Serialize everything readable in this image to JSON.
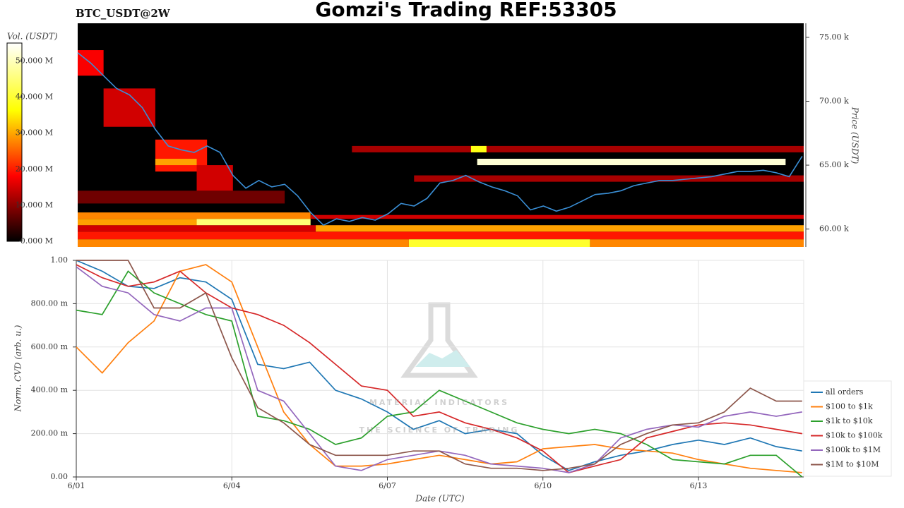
{
  "chart_data": [
    {
      "type": "heatmap",
      "title": "Gomzi's Trading REF:53305",
      "instrument": "BTC_USDT@2W",
      "ylabel": "Price (USDT)",
      "colorbar_label": "Vol. (USDT)",
      "xlim": [
        1,
        15.03
      ],
      "ylim": [
        58600,
        76100
      ],
      "yticks": [
        {
          "value": 60000,
          "label": "60.00 k"
        },
        {
          "value": 65000,
          "label": "65.00 k"
        },
        {
          "value": 70000,
          "label": "70.00 k"
        },
        {
          "value": 75000,
          "label": "75.00 k"
        }
      ],
      "clim": [
        0,
        55000000
      ],
      "cticks": [
        {
          "value": 0,
          "label": "0.000 M"
        },
        {
          "value": 10000000,
          "label": "10.000 M"
        },
        {
          "value": 20000000,
          "label": "20.000 M"
        },
        {
          "value": 30000000,
          "label": "30.000 M"
        },
        {
          "value": 40000000,
          "label": "40.000 M"
        },
        {
          "value": 50000000,
          "label": "50.000 M"
        }
      ],
      "bands": [
        {
          "x": [
            1,
            7.4
          ],
          "y": [
            58600,
            59200
          ],
          "value": 28000000
        },
        {
          "x": [
            7.4,
            10.9
          ],
          "y": [
            58600,
            59200
          ],
          "value": 40000000
        },
        {
          "x": [
            10.9,
            15.03
          ],
          "y": [
            58600,
            59200
          ],
          "value": 28000000
        },
        {
          "x": [
            1,
            15.03
          ],
          "y": [
            59200,
            59800
          ],
          "value": 20000000
        },
        {
          "x": [
            1,
            5.6
          ],
          "y": [
            59800,
            60300
          ],
          "value": 15000000
        },
        {
          "x": [
            5.6,
            15.03
          ],
          "y": [
            59800,
            60300
          ],
          "value": 30000000
        },
        {
          "x": [
            1,
            3.3
          ],
          "y": [
            60300,
            60800
          ],
          "value": 30000000
        },
        {
          "x": [
            3.3,
            5.5
          ],
          "y": [
            60300,
            60800
          ],
          "value": 45000000
        },
        {
          "x": [
            1,
            5.5
          ],
          "y": [
            60800,
            61300
          ],
          "value": 28000000
        },
        {
          "x": [
            5.5,
            15.03
          ],
          "y": [
            60800,
            61100
          ],
          "value": 15000000
        },
        {
          "x": [
            1,
            5
          ],
          "y": [
            62000,
            63000
          ],
          "value": 8000000
        },
        {
          "x": [
            1,
            1.5
          ],
          "y": [
            72000,
            74000
          ],
          "value": 18000000
        },
        {
          "x": [
            1.5,
            2.5
          ],
          "y": [
            68000,
            71000
          ],
          "value": 15000000
        },
        {
          "x": [
            2.5,
            3.5
          ],
          "y": [
            64500,
            67000
          ],
          "value": 20000000
        },
        {
          "x": [
            2.5,
            3.3
          ],
          "y": [
            65000,
            65500
          ],
          "value": 30000000
        },
        {
          "x": [
            3.3,
            4
          ],
          "y": [
            63000,
            65000
          ],
          "value": 15000000
        },
        {
          "x": [
            7.5,
            15.03
          ],
          "y": [
            63700,
            64200
          ],
          "value": 12000000
        },
        {
          "x": [
            6.3,
            15.03
          ],
          "y": [
            66000,
            66500
          ],
          "value": 12000000
        },
        {
          "x": [
            8.6,
            8.9
          ],
          "y": [
            66000,
            66500
          ],
          "value": 38000000
        },
        {
          "x": [
            8.72,
            14.68
          ],
          "y": [
            65000,
            65500
          ],
          "value": 52000000
        }
      ],
      "line": {
        "color": "#3a8fd6",
        "x": [
          1,
          1.25,
          1.5,
          1.75,
          2,
          2.25,
          2.5,
          2.75,
          3,
          3.25,
          3.5,
          3.75,
          4,
          4.25,
          4.5,
          4.75,
          5,
          5.25,
          5.5,
          5.75,
          6,
          6.25,
          6.5,
          6.75,
          7,
          7.25,
          7.5,
          7.75,
          8,
          8.25,
          8.5,
          8.75,
          9,
          9.25,
          9.5,
          9.75,
          10,
          10.25,
          10.5,
          10.75,
          11,
          11.25,
          11.5,
          11.75,
          12,
          12.25,
          12.5,
          12.75,
          13,
          13.25,
          13.5,
          13.75,
          14,
          14.25,
          14.5,
          14.75,
          15
        ],
        "values": [
          73800,
          73000,
          72000,
          71000,
          70500,
          69500,
          67800,
          66500,
          66200,
          66000,
          66500,
          66000,
          64200,
          63200,
          63800,
          63300,
          63500,
          62600,
          61300,
          60300,
          60800,
          60600,
          60900,
          60700,
          61200,
          62000,
          61800,
          62400,
          63600,
          63800,
          64200,
          63700,
          63300,
          63000,
          62600,
          61500,
          61800,
          61400,
          61700,
          62200,
          62700,
          62800,
          63000,
          63400,
          63600,
          63800,
          63800,
          63900,
          64000,
          64100,
          64300,
          64500,
          64500,
          64600,
          64400,
          64100,
          65700
        ]
      }
    },
    {
      "type": "line",
      "xlabel": "Date (UTC)",
      "ylabel": "Norm. CVD (arb. u.)",
      "grid": true,
      "watermark": [
        "MATERIAL INDICATORS",
        "THE SCIENCE OF TRADING"
      ],
      "xlim": [
        1,
        15.03
      ],
      "ylim": [
        0,
        1
      ],
      "xticks": [
        {
          "value": 1,
          "label": "6/01"
        },
        {
          "value": 4,
          "label": "6/04"
        },
        {
          "value": 7,
          "label": "6/07"
        },
        {
          "value": 10,
          "label": "6/10"
        },
        {
          "value": 13,
          "label": "6/13"
        }
      ],
      "yticks": [
        {
          "value": 0,
          "label": "0.00"
        },
        {
          "value": 0.2,
          "label": "200.00 m"
        },
        {
          "value": 0.4,
          "label": "400.00 m"
        },
        {
          "value": 0.6,
          "label": "600.00 m"
        },
        {
          "value": 0.8,
          "label": "800.00 m"
        },
        {
          "value": 1,
          "label": "1.00"
        }
      ],
      "x": [
        1,
        1.5,
        2,
        2.5,
        3,
        3.5,
        4,
        4.5,
        5,
        5.5,
        6,
        6.5,
        7,
        7.5,
        8,
        8.5,
        9,
        9.5,
        10,
        10.5,
        11,
        11.5,
        12,
        12.5,
        13,
        13.5,
        14,
        14.5,
        15
      ],
      "series": [
        {
          "name": "all orders",
          "color": "#1f77b4",
          "values": [
            1.0,
            0.95,
            0.88,
            0.87,
            0.92,
            0.9,
            0.82,
            0.52,
            0.5,
            0.53,
            0.4,
            0.36,
            0.3,
            0.22,
            0.26,
            0.2,
            0.22,
            0.2,
            0.1,
            0.03,
            0.07,
            0.1,
            0.12,
            0.15,
            0.17,
            0.15,
            0.18,
            0.14,
            0.12
          ]
        },
        {
          "name": "$100 to $1k",
          "color": "#ff7f0e",
          "values": [
            0.6,
            0.48,
            0.62,
            0.72,
            0.95,
            0.98,
            0.9,
            0.6,
            0.3,
            0.15,
            0.05,
            0.05,
            0.06,
            0.08,
            0.1,
            0.08,
            0.06,
            0.07,
            0.13,
            0.14,
            0.15,
            0.13,
            0.12,
            0.11,
            0.08,
            0.06,
            0.04,
            0.03,
            0.02
          ]
        },
        {
          "name": "$1k to $10k",
          "color": "#2ca02c",
          "values": [
            0.77,
            0.75,
            0.95,
            0.85,
            0.8,
            0.75,
            0.72,
            0.28,
            0.26,
            0.22,
            0.15,
            0.18,
            0.28,
            0.3,
            0.4,
            0.35,
            0.3,
            0.25,
            0.22,
            0.2,
            0.22,
            0.2,
            0.15,
            0.08,
            0.07,
            0.06,
            0.1,
            0.1,
            0.0
          ]
        },
        {
          "name": "$10k to $100k",
          "color": "#d62728",
          "values": [
            0.98,
            0.92,
            0.88,
            0.9,
            0.95,
            0.85,
            0.78,
            0.75,
            0.7,
            0.62,
            0.52,
            0.42,
            0.4,
            0.28,
            0.3,
            0.25,
            0.22,
            0.18,
            0.12,
            0.02,
            0.05,
            0.08,
            0.18,
            0.21,
            0.24,
            0.25,
            0.24,
            0.22,
            0.2
          ]
        },
        {
          "name": "$100k to $1M",
          "color": "#9467bd",
          "values": [
            0.97,
            0.88,
            0.85,
            0.75,
            0.72,
            0.78,
            0.78,
            0.4,
            0.35,
            0.2,
            0.05,
            0.03,
            0.08,
            0.1,
            0.12,
            0.1,
            0.06,
            0.05,
            0.04,
            0.02,
            0.06,
            0.18,
            0.22,
            0.24,
            0.23,
            0.28,
            0.3,
            0.28,
            0.3
          ]
        },
        {
          "name": "$1M to $10M",
          "color": "#8c564b",
          "values": [
            1.0,
            1.0,
            1.0,
            0.78,
            0.78,
            0.85,
            0.55,
            0.32,
            0.25,
            0.15,
            0.1,
            0.1,
            0.1,
            0.12,
            0.12,
            0.06,
            0.04,
            0.04,
            0.03,
            0.04,
            0.06,
            0.15,
            0.2,
            0.24,
            0.25,
            0.3,
            0.41,
            0.35,
            0.35
          ]
        }
      ]
    }
  ]
}
